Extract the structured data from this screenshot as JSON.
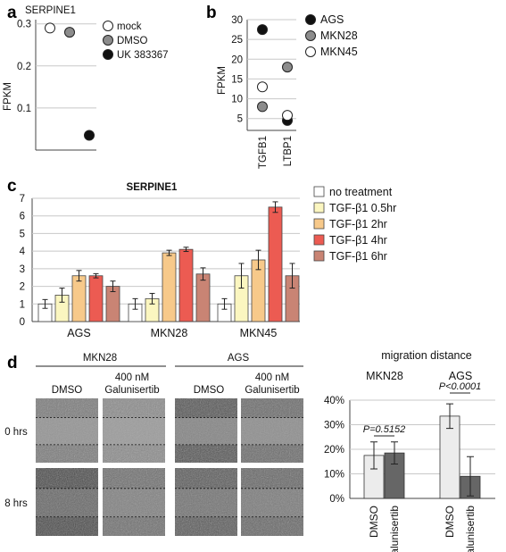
{
  "panels": {
    "a": "a",
    "b": "b",
    "c": "c",
    "d": "d"
  },
  "chart_data": [
    {
      "id": "a",
      "type": "scatter",
      "title": "SERPINE1",
      "ylabel": "FPKM",
      "ylim": [
        0,
        0.3
      ],
      "yticks": [
        "0.1",
        "0.2",
        "0.3"
      ],
      "ytick_values": [
        0.1,
        0.2,
        0.3
      ],
      "grid": true,
      "legend_placement": "right",
      "series": [
        {
          "name": "mock",
          "color": "#ffffff",
          "x": 1,
          "value": 0.29
        },
        {
          "name": "DMSO",
          "color": "#8c8c8c",
          "x": 2,
          "value": 0.28
        },
        {
          "name": "UK 383367",
          "color": "#111111",
          "x": 3,
          "value": 0.035
        }
      ]
    },
    {
      "id": "b",
      "type": "scatter",
      "ylabel": "FPKM",
      "ylim": [
        2,
        30
      ],
      "yticks": [
        "5",
        "10",
        "15",
        "20",
        "25",
        "30"
      ],
      "ytick_values": [
        5,
        10,
        15,
        20,
        25,
        30
      ],
      "grid": true,
      "legend_placement": "right",
      "categories": [
        "TGFB1",
        "LTBP1"
      ],
      "series": [
        {
          "name": "AGS",
          "color": "#111111",
          "values": [
            27.5,
            4.5
          ]
        },
        {
          "name": "MKN28",
          "color": "#8c8c8c",
          "values": [
            8,
            18
          ]
        },
        {
          "name": "MKN45",
          "color": "#ffffff",
          "values": [
            13,
            5.8
          ]
        }
      ]
    },
    {
      "id": "c",
      "type": "bar",
      "title": "SERPINE1",
      "ylim": [
        0,
        7
      ],
      "yticks": [
        "0",
        "1",
        "2",
        "3",
        "4",
        "5",
        "6",
        "7"
      ],
      "ytick_values": [
        0,
        1,
        2,
        3,
        4,
        5,
        6,
        7
      ],
      "grid": true,
      "legend_placement": "right",
      "categories": [
        "AGS",
        "MKN28",
        "MKN45"
      ],
      "series": [
        {
          "name": "no treatment",
          "color": "#ffffff",
          "values": [
            1.0,
            1.0,
            1.0
          ],
          "errors": [
            0.25,
            0.3,
            0.3
          ]
        },
        {
          "name": "TGF-β1 0.5hr",
          "color": "#fbf6c0",
          "values": [
            1.5,
            1.3,
            2.6
          ],
          "errors": [
            0.4,
            0.3,
            0.7
          ]
        },
        {
          "name": "TGF-β1 2hr",
          "color": "#f7c98a",
          "values": [
            2.6,
            3.9,
            3.5
          ],
          "errors": [
            0.3,
            0.15,
            0.55
          ]
        },
        {
          "name": "TGF-β1 4hr",
          "color": "#ec5b52",
          "values": [
            2.6,
            4.1,
            6.5
          ],
          "errors": [
            0.12,
            0.12,
            0.3
          ]
        },
        {
          "name": "TGF-β1 6hr",
          "color": "#c98474",
          "values": [
            2.0,
            2.7,
            2.6
          ],
          "errors": [
            0.3,
            0.35,
            0.7
          ]
        }
      ]
    },
    {
      "id": "d-chart",
      "type": "bar",
      "title": "migration distance",
      "ylim": [
        0,
        40
      ],
      "yticks": [
        "0%",
        "10%",
        "20%",
        "30%",
        "40%"
      ],
      "ytick_values": [
        0,
        10,
        20,
        30,
        40
      ],
      "grid": true,
      "groups": [
        "MKN28",
        "AGS"
      ],
      "categories": [
        "DMSO",
        "Galunisertib",
        "DMSO",
        "Galunisertib"
      ],
      "colors": [
        "#ececec",
        "#666666",
        "#ececec",
        "#666666"
      ],
      "values": [
        17.5,
        18.5,
        33.5,
        9
      ],
      "errors": [
        5.5,
        4.5,
        5,
        8
      ],
      "annotations": [
        "P=0.5152",
        "P<0.0001"
      ]
    }
  ],
  "micrographs": {
    "groups": [
      "MKN28",
      "AGS"
    ],
    "columns": [
      "DMSO",
      "400 nM",
      "Galunisertib",
      "DMSO",
      "400 nM",
      "Galunisertib"
    ],
    "rows": [
      "0 hrs",
      "8 hrs"
    ]
  }
}
